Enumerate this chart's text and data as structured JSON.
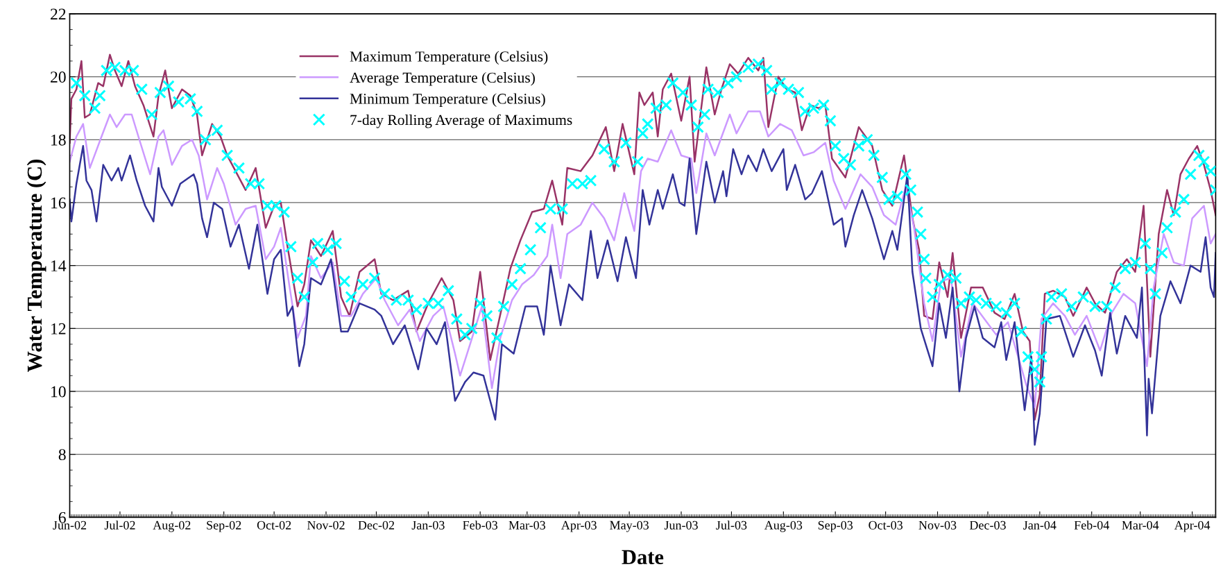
{
  "chart_data": {
    "type": "line",
    "xlabel": "Date",
    "ylabel": "Water Temperature (C)",
    "xlim": [
      "2002-06-01",
      "2004-04-15"
    ],
    "xticks": [
      {
        "value": "2002-06-01",
        "label": "Jun-02"
      },
      {
        "value": "2002-07-01",
        "label": "Jul-02"
      },
      {
        "value": "2002-08-01",
        "label": "Aug-02"
      },
      {
        "value": "2002-09-01",
        "label": "Sep-02"
      },
      {
        "value": "2002-10-01",
        "label": "Oct-02"
      },
      {
        "value": "2002-11-01",
        "label": "Nov-02"
      },
      {
        "value": "2002-12-01",
        "label": "Dec-02"
      },
      {
        "value": "2003-01-01",
        "label": "Jan-03"
      },
      {
        "value": "2003-02-01",
        "label": "Feb-03"
      },
      {
        "value": "2003-03-01",
        "label": "Mar-03"
      },
      {
        "value": "2003-04-01",
        "label": "Apr-03"
      },
      {
        "value": "2003-05-01",
        "label": "May-03"
      },
      {
        "value": "2003-06-01",
        "label": "Jun-03"
      },
      {
        "value": "2003-07-01",
        "label": "Jul-03"
      },
      {
        "value": "2003-08-01",
        "label": "Aug-03"
      },
      {
        "value": "2003-09-01",
        "label": "Sep-03"
      },
      {
        "value": "2003-10-01",
        "label": "Oct-03"
      },
      {
        "value": "2003-11-01",
        "label": "Nov-03"
      },
      {
        "value": "2003-12-01",
        "label": "Dec-03"
      },
      {
        "value": "2004-01-01",
        "label": "Jan-04"
      },
      {
        "value": "2004-02-01",
        "label": "Feb-04"
      },
      {
        "value": "2004-03-01",
        "label": "Mar-04"
      },
      {
        "value": "2004-04-01",
        "label": "Apr-04"
      }
    ],
    "ylim": [
      6,
      22
    ],
    "yticks": [
      6,
      8,
      10,
      12,
      14,
      16,
      18,
      20,
      22
    ],
    "grid": "y",
    "legend": "top",
    "marker": "none",
    "line_style": "solid",
    "series": [
      {
        "name": "Maximum Temperature (Celsius)",
        "color": "#993366",
        "x": [
          "2002-06-01",
          "2002-06-02",
          "2002-06-05",
          "2002-06-08",
          "2002-06-10",
          "2002-06-13",
          "2002-06-18",
          "2002-06-21",
          "2002-06-25",
          "2002-06-28",
          "2002-07-02",
          "2002-07-06",
          "2002-07-10",
          "2002-07-15",
          "2002-07-21",
          "2002-07-24",
          "2002-07-28",
          "2002-08-01",
          "2002-08-07",
          "2002-08-12",
          "2002-08-16",
          "2002-08-19",
          "2002-08-25",
          "2002-08-30",
          "2002-09-03",
          "2002-09-09",
          "2002-09-14",
          "2002-09-20",
          "2002-09-26",
          "2002-10-01",
          "2002-10-05",
          "2002-10-09",
          "2002-10-15",
          "2002-10-19",
          "2002-10-23",
          "2002-10-29",
          "2002-11-05",
          "2002-11-10",
          "2002-11-15",
          "2002-11-21",
          "2002-11-30",
          "2002-12-04",
          "2002-12-11",
          "2002-12-20",
          "2002-12-25",
          "2003-01-01",
          "2003-01-09",
          "2003-01-16",
          "2003-01-20",
          "2003-01-27",
          "2003-02-01",
          "2003-02-07",
          "2003-02-12",
          "2003-02-19",
          "2003-02-25",
          "2003-03-04",
          "2003-03-11",
          "2003-03-16",
          "2003-03-22",
          "2003-03-25",
          "2003-04-02",
          "2003-04-09",
          "2003-04-17",
          "2003-04-22",
          "2003-04-27",
          "2003-05-04",
          "2003-05-07",
          "2003-05-10",
          "2003-05-15",
          "2003-05-18",
          "2003-05-21",
          "2003-05-26",
          "2003-06-01",
          "2003-06-06",
          "2003-06-09",
          "2003-06-12",
          "2003-06-16",
          "2003-06-21",
          "2003-06-25",
          "2003-06-30",
          "2003-07-05",
          "2003-07-11",
          "2003-07-17",
          "2003-07-20",
          "2003-07-23",
          "2003-07-29",
          "2003-08-03",
          "2003-08-08",
          "2003-08-12",
          "2003-08-17",
          "2003-08-22",
          "2003-08-26",
          "2003-08-30",
          "2003-09-07",
          "2003-09-15",
          "2003-09-23",
          "2003-09-29",
          "2003-10-05",
          "2003-10-12",
          "2003-10-17",
          "2003-10-21",
          "2003-10-24",
          "2003-10-29",
          "2003-11-02",
          "2003-11-07",
          "2003-11-10",
          "2003-11-15",
          "2003-11-21",
          "2003-11-28",
          "2003-12-05",
          "2003-12-11",
          "2003-12-17",
          "2003-12-22",
          "2003-12-26",
          "2003-12-29",
          "2004-01-01",
          "2004-01-04",
          "2004-01-09",
          "2004-01-16",
          "2004-01-21",
          "2004-01-29",
          "2004-02-03",
          "2004-02-09",
          "2004-02-16",
          "2004-02-22",
          "2004-02-27",
          "2004-03-03",
          "2004-03-07",
          "2004-03-12",
          "2004-03-17",
          "2004-03-21",
          "2004-03-25",
          "2004-03-30",
          "2004-04-04",
          "2004-04-08",
          "2004-04-12",
          "2004-04-15"
        ],
        "values": [
          17.9,
          19.3,
          19.6,
          20.5,
          18.7,
          18.8,
          19.8,
          19.7,
          20.7,
          20.2,
          19.7,
          20.5,
          19.7,
          19.1,
          18.1,
          19.4,
          20.2,
          19.0,
          19.6,
          19.4,
          18.8,
          17.5,
          18.5,
          18.1,
          17.5,
          16.9,
          16.4,
          17.1,
          15.2,
          15.9,
          16.0,
          14.6,
          12.7,
          13.4,
          14.8,
          14.3,
          15.1,
          13.0,
          12.4,
          13.8,
          14.2,
          13.1,
          12.9,
          13.2,
          11.9,
          12.8,
          13.6,
          12.9,
          11.6,
          11.9,
          13.8,
          11.0,
          12.2,
          13.9,
          14.8,
          15.7,
          15.8,
          16.7,
          15.3,
          17.1,
          17.0,
          17.5,
          18.4,
          17.0,
          18.5,
          16.9,
          19.5,
          19.1,
          19.5,
          18.1,
          19.6,
          20.1,
          18.6,
          20.0,
          17.3,
          18.6,
          20.3,
          18.8,
          19.6,
          20.4,
          20.1,
          20.6,
          20.2,
          20.6,
          18.4,
          20.0,
          19.6,
          19.5,
          18.3,
          19.1,
          19.0,
          19.1,
          17.4,
          16.8,
          18.4,
          17.8,
          16.4,
          15.9,
          17.5,
          15.5,
          14.5,
          12.4,
          12.3,
          14.1,
          13.0,
          14.4,
          11.7,
          13.3,
          13.3,
          12.5,
          12.3,
          13.1,
          11.9,
          11.6,
          9.1,
          9.9,
          13.1,
          13.2,
          13.0,
          12.4,
          13.3,
          12.8,
          12.5,
          13.8,
          14.2,
          13.8,
          15.9,
          11.1,
          15.0,
          16.4,
          15.6,
          16.9,
          17.4,
          17.8,
          17.2,
          16.4,
          15.6
        ]
      },
      {
        "name": "Average Temperature (Celsius)",
        "color": "#cc99ff",
        "x": [
          "2002-06-01",
          "2002-06-05",
          "2002-06-09",
          "2002-06-13",
          "2002-06-20",
          "2002-06-25",
          "2002-06-29",
          "2002-07-04",
          "2002-07-08",
          "2002-07-12",
          "2002-07-19",
          "2002-07-24",
          "2002-07-27",
          "2002-08-01",
          "2002-08-07",
          "2002-08-13",
          "2002-08-17",
          "2002-08-22",
          "2002-08-28",
          "2002-09-01",
          "2002-09-08",
          "2002-09-14",
          "2002-09-20",
          "2002-09-26",
          "2002-10-01",
          "2002-10-05",
          "2002-10-10",
          "2002-10-15",
          "2002-10-20",
          "2002-10-23",
          "2002-10-29",
          "2002-11-05",
          "2002-11-10",
          "2002-11-16",
          "2002-11-23",
          "2002-12-01",
          "2002-12-06",
          "2002-12-14",
          "2002-12-21",
          "2002-12-27",
          "2003-01-04",
          "2003-01-10",
          "2003-01-17",
          "2003-01-20",
          "2003-01-26",
          "2003-02-02",
          "2003-02-08",
          "2003-02-13",
          "2003-02-20",
          "2003-02-26",
          "2003-03-05",
          "2003-03-13",
          "2003-03-16",
          "2003-03-21",
          "2003-03-25",
          "2003-04-02",
          "2003-04-09",
          "2003-04-16",
          "2003-04-22",
          "2003-04-28",
          "2003-05-04",
          "2003-05-08",
          "2003-05-12",
          "2003-05-18",
          "2003-05-26",
          "2003-06-01",
          "2003-06-07",
          "2003-06-10",
          "2003-06-16",
          "2003-06-21",
          "2003-06-30",
          "2003-07-04",
          "2003-07-11",
          "2003-07-18",
          "2003-07-23",
          "2003-07-30",
          "2003-08-06",
          "2003-08-13",
          "2003-08-19",
          "2003-08-26",
          "2003-08-31",
          "2003-09-07",
          "2003-09-16",
          "2003-09-23",
          "2003-09-30",
          "2003-10-07",
          "2003-10-13",
          "2003-10-18",
          "2003-10-24",
          "2003-10-29",
          "2003-11-03",
          "2003-11-09",
          "2003-11-15",
          "2003-11-22",
          "2003-11-29",
          "2003-12-06",
          "2003-12-13",
          "2003-12-18",
          "2003-12-24",
          "2003-12-29",
          "2004-01-02",
          "2004-01-09",
          "2004-01-16",
          "2004-01-22",
          "2004-01-29",
          "2004-02-06",
          "2004-02-13",
          "2004-02-20",
          "2004-02-27",
          "2004-03-05",
          "2004-03-09",
          "2004-03-15",
          "2004-03-21",
          "2004-03-27",
          "2004-04-01",
          "2004-04-08",
          "2004-04-12",
          "2004-04-15"
        ],
        "values": [
          17.3,
          18.1,
          18.5,
          17.1,
          18.1,
          18.8,
          18.4,
          18.8,
          18.8,
          18.1,
          16.9,
          18.1,
          18.3,
          17.2,
          17.8,
          18.0,
          17.5,
          16.1,
          17.1,
          16.6,
          15.3,
          15.8,
          15.9,
          14.2,
          14.6,
          15.2,
          13.4,
          11.7,
          12.4,
          14.3,
          13.6,
          14.1,
          12.4,
          12.4,
          13.1,
          13.6,
          12.9,
          12.1,
          12.6,
          11.6,
          12.4,
          12.7,
          11.2,
          10.5,
          11.5,
          12.7,
          10.1,
          11.7,
          12.9,
          13.4,
          13.7,
          14.3,
          15.3,
          13.6,
          15.0,
          15.3,
          16.0,
          15.5,
          14.8,
          16.3,
          15.1,
          17.0,
          17.4,
          17.3,
          18.3,
          17.5,
          17.4,
          16.3,
          18.2,
          17.5,
          18.8,
          18.2,
          18.9,
          18.9,
          18.1,
          18.5,
          18.3,
          17.5,
          17.6,
          17.9,
          16.7,
          15.8,
          16.9,
          16.5,
          15.6,
          15.3,
          16.5,
          15.2,
          12.8,
          11.6,
          13.5,
          13.6,
          11.1,
          12.8,
          12.3,
          11.8,
          12.2,
          11.3,
          10.2,
          9.5,
          12.3,
          12.8,
          12.4,
          11.8,
          12.4,
          11.3,
          12.5,
          13.1,
          12.8,
          10.8,
          13.3,
          15.0,
          14.1,
          14.0,
          15.5,
          15.9,
          14.7,
          15.0
        ]
      },
      {
        "name": "Minimum Temperature (Celsius)",
        "color": "#333399",
        "x": [
          "2002-06-01",
          "2002-06-02",
          "2002-06-05",
          "2002-06-09",
          "2002-06-11",
          "2002-06-14",
          "2002-06-17",
          "2002-06-21",
          "2002-06-26",
          "2002-06-30",
          "2002-07-02",
          "2002-07-07",
          "2002-07-11",
          "2002-07-16",
          "2002-07-21",
          "2002-07-24",
          "2002-07-26",
          "2002-08-01",
          "2002-08-06",
          "2002-08-14",
          "2002-08-16",
          "2002-08-19",
          "2002-08-22",
          "2002-08-26",
          "2002-08-31",
          "2002-09-05",
          "2002-09-10",
          "2002-09-16",
          "2002-09-21",
          "2002-09-27",
          "2002-10-01",
          "2002-10-05",
          "2002-10-09",
          "2002-10-12",
          "2002-10-16",
          "2002-10-19",
          "2002-10-23",
          "2002-10-29",
          "2002-11-04",
          "2002-11-10",
          "2002-11-14",
          "2002-11-21",
          "2002-11-30",
          "2002-12-04",
          "2002-12-11",
          "2002-12-18",
          "2002-12-26",
          "2002-12-31",
          "2003-01-06",
          "2003-01-11",
          "2003-01-17",
          "2003-01-23",
          "2003-01-28",
          "2003-02-03",
          "2003-02-10",
          "2003-02-14",
          "2003-02-21",
          "2003-02-28",
          "2003-03-07",
          "2003-03-11",
          "2003-03-15",
          "2003-03-21",
          "2003-03-26",
          "2003-04-03",
          "2003-04-08",
          "2003-04-12",
          "2003-04-18",
          "2003-04-24",
          "2003-04-29",
          "2003-05-05",
          "2003-05-09",
          "2003-05-13",
          "2003-05-18",
          "2003-05-21",
          "2003-05-27",
          "2003-05-31",
          "2003-06-03",
          "2003-06-06",
          "2003-06-10",
          "2003-06-16",
          "2003-06-21",
          "2003-06-26",
          "2003-06-28",
          "2003-07-02",
          "2003-07-07",
          "2003-07-11",
          "2003-07-16",
          "2003-07-20",
          "2003-07-25",
          "2003-08-01",
          "2003-08-03",
          "2003-08-08",
          "2003-08-14",
          "2003-08-18",
          "2003-08-24",
          "2003-08-31",
          "2003-09-05",
          "2003-09-07",
          "2003-09-12",
          "2003-09-17",
          "2003-09-23",
          "2003-09-30",
          "2003-10-05",
          "2003-10-08",
          "2003-10-14",
          "2003-10-17",
          "2003-10-22",
          "2003-10-29",
          "2003-11-02",
          "2003-11-06",
          "2003-11-10",
          "2003-11-14",
          "2003-11-18",
          "2003-11-23",
          "2003-11-28",
          "2003-12-05",
          "2003-12-09",
          "2003-12-12",
          "2003-12-17",
          "2003-12-23",
          "2003-12-27",
          "2003-12-29",
          "2004-01-01",
          "2004-01-05",
          "2004-01-13",
          "2004-01-21",
          "2004-01-28",
          "2004-02-03",
          "2004-02-07",
          "2004-02-12",
          "2004-02-16",
          "2004-02-21",
          "2004-02-28",
          "2004-03-02",
          "2004-03-05",
          "2004-03-06",
          "2004-03-08",
          "2004-03-13",
          "2004-03-19",
          "2004-03-25",
          "2004-03-31",
          "2004-04-06",
          "2004-04-09",
          "2004-04-12",
          "2004-04-14",
          "2004-04-15"
        ],
        "values": [
          16.1,
          15.4,
          16.6,
          17.8,
          16.7,
          16.4,
          15.4,
          17.2,
          16.7,
          17.1,
          16.7,
          17.5,
          16.7,
          15.9,
          15.4,
          17.1,
          16.5,
          15.9,
          16.6,
          16.9,
          16.6,
          15.5,
          14.9,
          16.0,
          15.8,
          14.6,
          15.3,
          13.9,
          15.3,
          13.1,
          14.2,
          14.5,
          12.4,
          12.7,
          10.8,
          11.5,
          13.6,
          13.4,
          14.2,
          11.9,
          11.9,
          12.8,
          12.6,
          12.4,
          11.5,
          12.1,
          10.7,
          12.0,
          11.5,
          12.2,
          9.7,
          10.3,
          10.6,
          10.5,
          9.1,
          11.5,
          11.2,
          12.7,
          12.7,
          11.8,
          14.0,
          12.1,
          13.4,
          12.9,
          15.1,
          13.6,
          14.8,
          13.5,
          14.9,
          13.6,
          16.4,
          15.3,
          16.4,
          15.8,
          16.9,
          16.0,
          15.9,
          17.4,
          15.0,
          17.3,
          16.0,
          17.0,
          16.2,
          17.7,
          16.9,
          17.5,
          17.0,
          17.7,
          17.0,
          17.7,
          16.4,
          17.2,
          16.1,
          16.3,
          17.0,
          15.3,
          15.5,
          14.6,
          15.6,
          16.4,
          15.5,
          14.2,
          15.1,
          14.5,
          16.9,
          13.8,
          12.0,
          10.8,
          12.8,
          11.7,
          13.3,
          10.0,
          11.7,
          12.7,
          11.7,
          11.4,
          12.2,
          11.0,
          12.2,
          9.4,
          11.1,
          8.3,
          9.3,
          12.3,
          12.4,
          11.1,
          12.1,
          11.3,
          10.5,
          12.5,
          11.2,
          12.4,
          11.7,
          13.3,
          8.6,
          10.4,
          9.3,
          12.4,
          13.5,
          12.8,
          14.0,
          13.8,
          14.9,
          13.3,
          13.0,
          14.4
        ]
      },
      {
        "name": "7-day Rolling Average of Maximums",
        "color": "#00ffff",
        "type": "scatter",
        "marker": "cross",
        "x": [
          "2002-06-05",
          "2002-06-10",
          "2002-06-16",
          "2002-06-19",
          "2002-06-23",
          "2002-06-28",
          "2002-07-04",
          "2002-07-09",
          "2002-07-14",
          "2002-07-20",
          "2002-07-25",
          "2002-07-30",
          "2002-08-05",
          "2002-08-12",
          "2002-08-16",
          "2002-08-21",
          "2002-08-28",
          "2002-09-03",
          "2002-09-10",
          "2002-09-17",
          "2002-09-22",
          "2002-09-27",
          "2002-10-02",
          "2002-10-07",
          "2002-10-11",
          "2002-10-15",
          "2002-10-19",
          "2002-10-24",
          "2002-10-27",
          "2002-11-02",
          "2002-11-07",
          "2002-11-12",
          "2002-11-16",
          "2002-11-23",
          "2002-11-30",
          "2002-12-06",
          "2002-12-13",
          "2002-12-20",
          "2002-12-25",
          "2003-01-01",
          "2003-01-07",
          "2003-01-13",
          "2003-01-18",
          "2003-01-23",
          "2003-01-27",
          "2003-02-01",
          "2003-02-05",
          "2003-02-11",
          "2003-02-15",
          "2003-02-20",
          "2003-02-25",
          "2003-03-03",
          "2003-03-09",
          "2003-03-15",
          "2003-03-22",
          "2003-03-28",
          "2003-04-03",
          "2003-04-08",
          "2003-04-16",
          "2003-04-22",
          "2003-04-29",
          "2003-05-06",
          "2003-05-09",
          "2003-05-12",
          "2003-05-17",
          "2003-05-23",
          "2003-05-27",
          "2003-06-02",
          "2003-06-07",
          "2003-06-11",
          "2003-06-15",
          "2003-06-17",
          "2003-06-23",
          "2003-06-29",
          "2003-07-04",
          "2003-07-11",
          "2003-07-17",
          "2003-07-22",
          "2003-07-25",
          "2003-07-30",
          "2003-08-04",
          "2003-08-10",
          "2003-08-14",
          "2003-08-19",
          "2003-08-25",
          "2003-08-29",
          "2003-09-01",
          "2003-09-06",
          "2003-09-10",
          "2003-09-15",
          "2003-09-20",
          "2003-09-24",
          "2003-09-29",
          "2003-10-03",
          "2003-10-08",
          "2003-10-13",
          "2003-10-16",
          "2003-10-20",
          "2003-10-22",
          "2003-10-24",
          "2003-10-25",
          "2003-10-29",
          "2003-11-02",
          "2003-11-07",
          "2003-11-12",
          "2003-11-15",
          "2003-11-20",
          "2003-11-24",
          "2003-11-30",
          "2003-12-06",
          "2003-12-12",
          "2003-12-17",
          "2003-12-21",
          "2003-12-25",
          "2003-12-29",
          "2004-01-01",
          "2004-01-02",
          "2004-01-05",
          "2004-01-08",
          "2004-01-14",
          "2004-01-20",
          "2004-01-27",
          "2004-02-03",
          "2004-02-10",
          "2004-02-15",
          "2004-02-21",
          "2004-02-27",
          "2004-03-04",
          "2004-03-07",
          "2004-03-10",
          "2004-03-14",
          "2004-03-17",
          "2004-03-22",
          "2004-03-27",
          "2004-03-31",
          "2004-04-05",
          "2004-04-08",
          "2004-04-12",
          "2004-04-15"
        ],
        "values": [
          19.8,
          19.4,
          19.0,
          19.4,
          20.2,
          20.3,
          20.2,
          20.2,
          19.6,
          18.8,
          19.5,
          19.7,
          19.2,
          19.3,
          18.9,
          18.0,
          18.3,
          17.5,
          17.1,
          16.6,
          16.6,
          15.9,
          15.9,
          15.7,
          14.6,
          13.6,
          13.0,
          14.1,
          14.7,
          14.5,
          14.7,
          13.5,
          13.0,
          13.4,
          13.6,
          13.1,
          12.9,
          12.9,
          12.6,
          12.8,
          12.8,
          13.2,
          12.3,
          11.8,
          12.0,
          12.8,
          12.4,
          11.7,
          12.7,
          13.4,
          13.9,
          14.5,
          15.2,
          15.8,
          15.8,
          16.6,
          16.6,
          16.7,
          17.7,
          17.3,
          17.9,
          17.3,
          18.2,
          18.5,
          19.0,
          19.1,
          19.8,
          19.5,
          19.1,
          18.4,
          18.8,
          19.6,
          19.5,
          19.8,
          20.0,
          20.3,
          20.4,
          20.2,
          19.6,
          19.8,
          19.6,
          19.5,
          18.9,
          19.0,
          19.1,
          18.6,
          17.8,
          17.4,
          17.2,
          17.8,
          18.0,
          17.5,
          16.8,
          16.1,
          16.2,
          16.9,
          16.4,
          15.7,
          15.0,
          14.2,
          13.6,
          13.0,
          13.4,
          13.7,
          13.6,
          12.8,
          13.0,
          12.9,
          12.8,
          12.7,
          12.5,
          12.8,
          11.9,
          11.1,
          10.7,
          10.3,
          11.1,
          12.3,
          13.0,
          13.1,
          12.7,
          13.0,
          12.7,
          12.7,
          13.3,
          13.9,
          14.1,
          14.7,
          13.9,
          13.1,
          14.4,
          15.2,
          15.7,
          16.1,
          16.9,
          17.5,
          17.3,
          17.0,
          16.4
        ]
      }
    ]
  }
}
